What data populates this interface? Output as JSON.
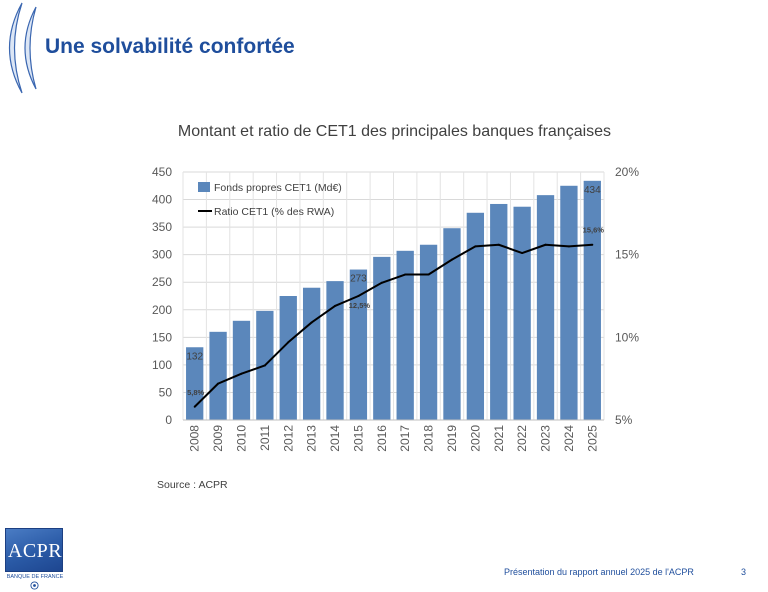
{
  "slide": {
    "title": "Une solvabilité confortée",
    "source": "Source : ACPR",
    "footer": "Présentation du rapport annuel 2025 de l'ACPR",
    "page_number": "3"
  },
  "logo": {
    "name": "ACPR",
    "subtitle": "BANQUE DE FRANCE"
  },
  "colors": {
    "title": "#1f4e9c",
    "footer": "#1f4e9c"
  },
  "icons": {
    "decoration": "bracket-decoration-icon",
    "logo": "acpr-logo-icon",
    "emblem": "banque-de-france-emblem-icon"
  },
  "chart_data": {
    "type": "bar",
    "title": "Montant et ratio de CET1 des principales banques françaises",
    "categories": [
      "2008",
      "2009",
      "2010",
      "2011",
      "2012",
      "2013",
      "2014",
      "2015",
      "2016",
      "2017",
      "2018",
      "2019",
      "2020",
      "2021",
      "2022",
      "2023",
      "2024",
      "2025"
    ],
    "ylim": [
      0,
      450
    ],
    "yticks": [
      0,
      50,
      100,
      150,
      200,
      250,
      300,
      350,
      400,
      450
    ],
    "y2lim": [
      5,
      20
    ],
    "y2ticks": [
      {
        "value": 5,
        "label": "5%"
      },
      {
        "value": 10,
        "label": "10%"
      },
      {
        "value": 15,
        "label": "15%"
      },
      {
        "value": 20,
        "label": "20%"
      }
    ],
    "grid": true,
    "legend": "top-left",
    "series": [
      {
        "name": "Fonds propres CET1 (Md€)",
        "type": "bar",
        "axis": "left",
        "color": "#5b87bb",
        "values": [
          132,
          160,
          180,
          198,
          225,
          240,
          252,
          273,
          296,
          307,
          318,
          348,
          376,
          392,
          387,
          408,
          425,
          434
        ],
        "labels": [
          {
            "index": 0,
            "text": "132",
            "position": "inside-end"
          },
          {
            "index": 7,
            "text": "273",
            "position": "inside-end"
          },
          {
            "index": 17,
            "text": "434",
            "position": "inside-end"
          }
        ]
      },
      {
        "name": "Ratio CET1 (% des RWA)",
        "type": "line",
        "axis": "right",
        "color": "#000000",
        "values": [
          5.8,
          7.2,
          7.8,
          8.3,
          9.7,
          10.9,
          11.9,
          12.5,
          13.3,
          13.8,
          13.8,
          14.7,
          15.5,
          15.6,
          15.1,
          15.6,
          15.5,
          15.6
        ],
        "labels": [
          {
            "index": 0,
            "text": "5,8%",
            "position": "above"
          },
          {
            "index": 7,
            "text": "12,5%",
            "position": "below"
          },
          {
            "index": 17,
            "text": "15,6%",
            "position": "above"
          }
        ]
      }
    ]
  }
}
